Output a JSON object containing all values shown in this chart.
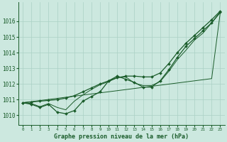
{
  "title": "Graphe pression niveau de la mer (hPa)",
  "xlabel_hours": [
    0,
    1,
    2,
    3,
    4,
    5,
    6,
    7,
    8,
    9,
    10,
    11,
    12,
    13,
    14,
    15,
    16,
    17,
    18,
    19,
    20,
    21,
    22,
    23
  ],
  "ylim": [
    1009.4,
    1017.2
  ],
  "yticks": [
    1010,
    1011,
    1012,
    1013,
    1014,
    1015,
    1016
  ],
  "background_color": "#cce8df",
  "grid_color": "#aad0c5",
  "line_color": "#1a5c2a",
  "series_wavy": [
    1010.8,
    1010.7,
    1010.5,
    1010.7,
    1010.2,
    1010.1,
    1010.3,
    1010.9,
    1011.2,
    1011.5,
    1012.2,
    1012.5,
    1012.3,
    1012.1,
    1011.8,
    1011.8,
    1012.2,
    1012.9,
    1013.7,
    1014.4,
    1014.9,
    1015.4,
    1015.9,
    1016.6
  ],
  "series_smooth": [
    1010.8,
    1010.75,
    1010.55,
    1010.75,
    1010.5,
    1010.35,
    1010.9,
    1011.3,
    1011.65,
    1011.95,
    1012.15,
    1012.4,
    1012.45,
    1012.05,
    1011.9,
    1011.9,
    1012.15,
    1012.8,
    1013.55,
    1014.15,
    1014.8,
    1015.25,
    1015.9,
    1016.55
  ],
  "series_linear": [
    1010.8,
    1010.87,
    1010.94,
    1011.01,
    1011.08,
    1011.15,
    1011.22,
    1011.29,
    1011.36,
    1011.43,
    1011.5,
    1011.57,
    1011.64,
    1011.71,
    1011.78,
    1011.85,
    1011.92,
    1011.99,
    1012.06,
    1012.13,
    1012.2,
    1012.27,
    1012.34,
    1016.55
  ],
  "series_upper": [
    1010.8,
    1010.85,
    1010.9,
    1010.95,
    1011.0,
    1011.1,
    1011.25,
    1011.5,
    1011.75,
    1012.0,
    1012.2,
    1012.4,
    1012.5,
    1012.5,
    1012.45,
    1012.45,
    1012.7,
    1013.3,
    1014.0,
    1014.6,
    1015.1,
    1015.6,
    1016.1,
    1016.65
  ]
}
